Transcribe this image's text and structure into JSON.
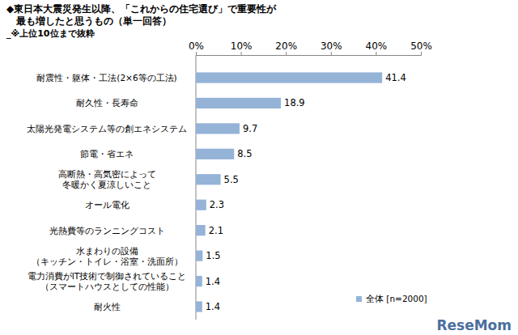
{
  "chart_data": {
    "type": "bar",
    "orientation": "horizontal",
    "title": "◆東日本大震災発生以降、「これからの住宅選び」で重要性が\n最も増したと思うもの（単一回答）",
    "subtitle": "_※上位10位まで抜粋",
    "categories": [
      "耐震性・躯体・工法(2×6等の工法)",
      "耐久性・長寿命",
      "太陽光発電システム等の創エネシステム",
      "節電・省エネ",
      "高断熱・高気密によって\n冬暖かく夏涼しいこと",
      "オール電化",
      "光熱費等のランニングコスト",
      "水まわりの設備\n（キッチン・トイレ・浴室・洗面所）",
      "電力消費がIT技術で制御されていること\n（スマートハウスとしての性能）",
      "耐火性"
    ],
    "series": [
      {
        "name": "全体 [n=2000]",
        "color": "#95b3d7",
        "values": [
          41.4,
          18.9,
          9.7,
          8.5,
          5.5,
          2.3,
          2.1,
          1.5,
          1.4,
          1.4
        ]
      }
    ],
    "xlim": [
      0,
      50
    ],
    "xticks": [
      {
        "value": 0,
        "label": "0%"
      },
      {
        "value": 10,
        "label": "10%"
      },
      {
        "value": 20,
        "label": "20%"
      },
      {
        "value": 30,
        "label": "30%"
      },
      {
        "value": 40,
        "label": "40%"
      },
      {
        "value": 50,
        "label": "50%"
      }
    ],
    "grid": false,
    "data_labels": true,
    "legend": "bottom-right",
    "annotations": [
      "ReseMom"
    ]
  }
}
